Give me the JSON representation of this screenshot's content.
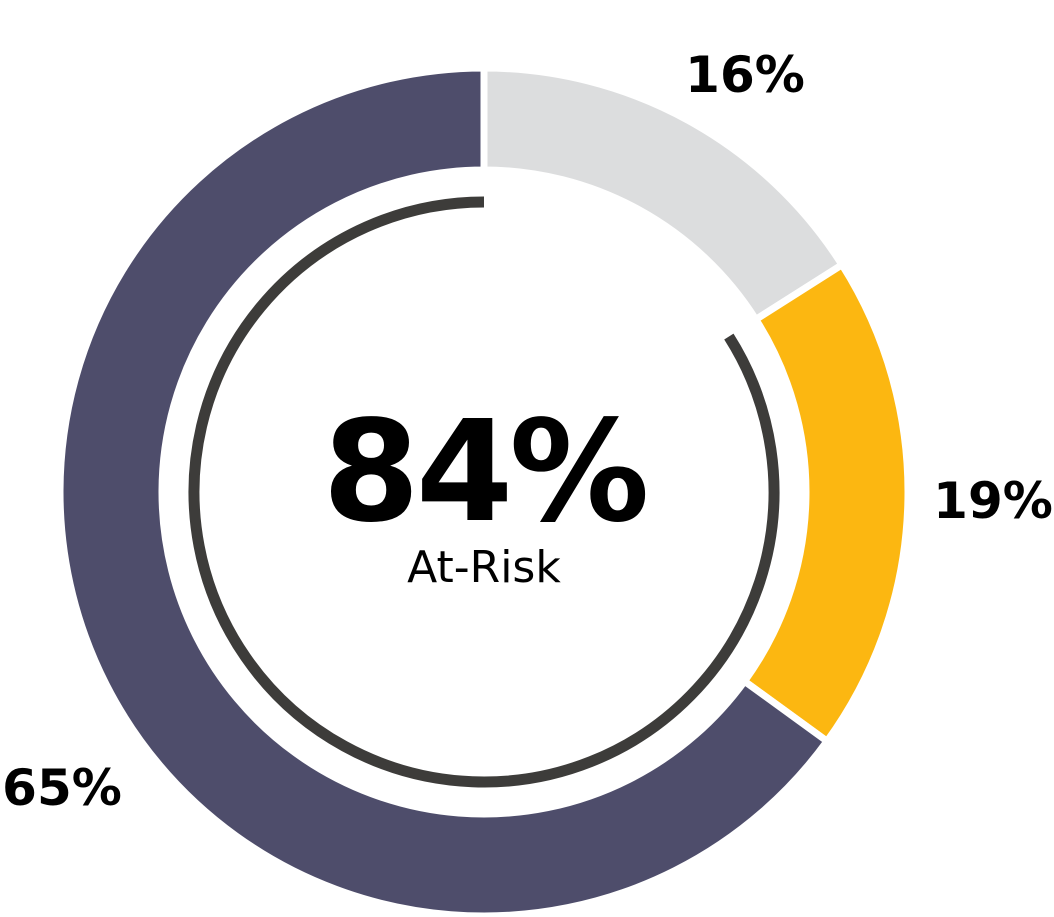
{
  "chart_data": {
    "type": "pie",
    "categories": [
      "",
      "",
      ""
    ],
    "values": [
      16,
      19,
      65
    ],
    "labels": [
      "16%",
      "19%",
      "65%"
    ],
    "colors": [
      "#DCDDDE",
      "#FCB711",
      "#4E4D6B"
    ],
    "center": {
      "value": "84%",
      "caption": "At-Risk"
    },
    "inner_arc": {
      "share": 84,
      "color": "#3D3C3A"
    }
  }
}
